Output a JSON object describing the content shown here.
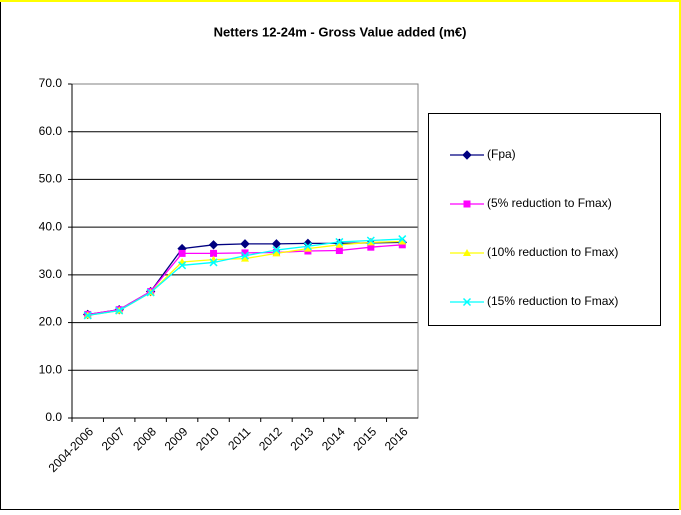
{
  "chart_data": {
    "type": "line",
    "title": "Netters 12-24m - Gross Value added (m€)",
    "categories": [
      "2004-2006",
      "2007",
      "2008",
      "2009",
      "2010",
      "2011",
      "2012",
      "2013",
      "2014",
      "2015",
      "2016"
    ],
    "series": [
      {
        "name": "(Fpa)",
        "color": "#000080",
        "marker": "diamond",
        "values": [
          21.7,
          22.7,
          26.5,
          35.5,
          36.3,
          36.5,
          36.5,
          36.6,
          36.6,
          36.7,
          36.8
        ]
      },
      {
        "name": "(5% reduction to Fmax)",
        "color": "#ff00ff",
        "marker": "square",
        "values": [
          21.7,
          22.7,
          26.5,
          34.5,
          34.5,
          34.6,
          34.7,
          35.0,
          35.1,
          35.8,
          36.3
        ]
      },
      {
        "name": "(10% reduction to Fmax)",
        "color": "#ffff00",
        "marker": "triangle",
        "values": [
          21.5,
          22.5,
          26.3,
          32.7,
          33.2,
          33.4,
          34.5,
          35.5,
          36.3,
          36.8,
          37.0
        ]
      },
      {
        "name": "(15% reduction to Fmax)",
        "color": "#00ffff",
        "marker": "x",
        "values": [
          21.5,
          22.5,
          26.3,
          32.0,
          32.6,
          34.0,
          35.2,
          36.0,
          36.9,
          37.2,
          37.5
        ]
      }
    ],
    "ylim": [
      0,
      70
    ],
    "yticks": [
      {
        "value": 0,
        "label": "0.0"
      },
      {
        "value": 10,
        "label": "10.0"
      },
      {
        "value": 20,
        "label": "20.0"
      },
      {
        "value": 30,
        "label": "30.0"
      },
      {
        "value": 40,
        "label": "40.0"
      },
      {
        "value": 50,
        "label": "50.0"
      },
      {
        "value": 60,
        "label": "60.0"
      },
      {
        "value": 70,
        "label": "70.0"
      }
    ],
    "grid": true,
    "legend": "right"
  }
}
